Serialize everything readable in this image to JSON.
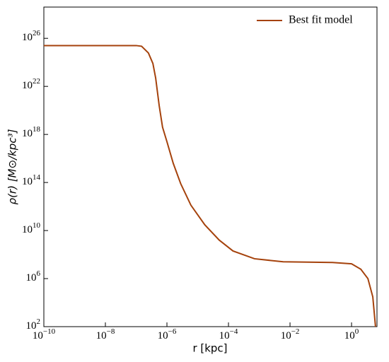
{
  "chart_data": {
    "type": "line",
    "xlabel": "r [kpc]",
    "ylabel": "ρ(r) [M⊙/kpc³]",
    "xscale": "log",
    "yscale": "log",
    "xlim": [
      1e-10,
      6.7
    ],
    "ylim": [
      100,
      4e+28
    ],
    "xticks": [
      {
        "value": 1e-10,
        "label": "10^{−10}"
      },
      {
        "value": 1e-08,
        "label": "10^{−8}"
      },
      {
        "value": 1e-06,
        "label": "10^{−6}"
      },
      {
        "value": 0.0001,
        "label": "10^{−4}"
      },
      {
        "value": 0.01,
        "label": "10^{−2}"
      },
      {
        "value": 1,
        "label": "10^{0}"
      }
    ],
    "yticks": [
      {
        "value": 100,
        "label": "10^{2}"
      },
      {
        "value": 1000000.0,
        "label": "10^{6}"
      },
      {
        "value": 10000000000.0,
        "label": "10^{10}"
      },
      {
        "value": 100000000000000.0,
        "label": "10^{14}"
      },
      {
        "value": 1e+18,
        "label": "10^{18}"
      },
      {
        "value": 1e+22,
        "label": "10^{22}"
      },
      {
        "value": 1e+26,
        "label": "10^{26}"
      }
    ],
    "legend": "upper right",
    "series": [
      {
        "name": "Best fit model",
        "color": "#a5420c",
        "x": [
          1e-10,
          1e-09,
          1e-08,
          1e-07,
          1.5e-07,
          2.5e-07,
          3.5e-07,
          4.3e-07,
          5.6e-07,
          7.2e-07,
          1e-06,
          1.6e-06,
          2.8e-06,
          6e-06,
          1.7e-05,
          5e-05,
          0.00014,
          0.0007,
          0.006,
          0.24,
          1,
          2,
          3.4,
          4.9,
          6
        ],
        "values": [
          2.5e+25,
          2.5e+25,
          2.5e+25,
          2.5e+25,
          2.2e+25,
          6e+24,
          8e+23,
          5e+22,
          2.5e+20,
          4e+18,
          2.5e+17,
          4000000000000000.0,
          80000000000000.0,
          1300000000000.0,
          30000000000.0,
          1600000000.0,
          200000000.0,
          45000000.0,
          25000000.0,
          22000000.0,
          17000000.0,
          6000000.0,
          1000000.0,
          30000.0,
          100
        ]
      }
    ]
  }
}
